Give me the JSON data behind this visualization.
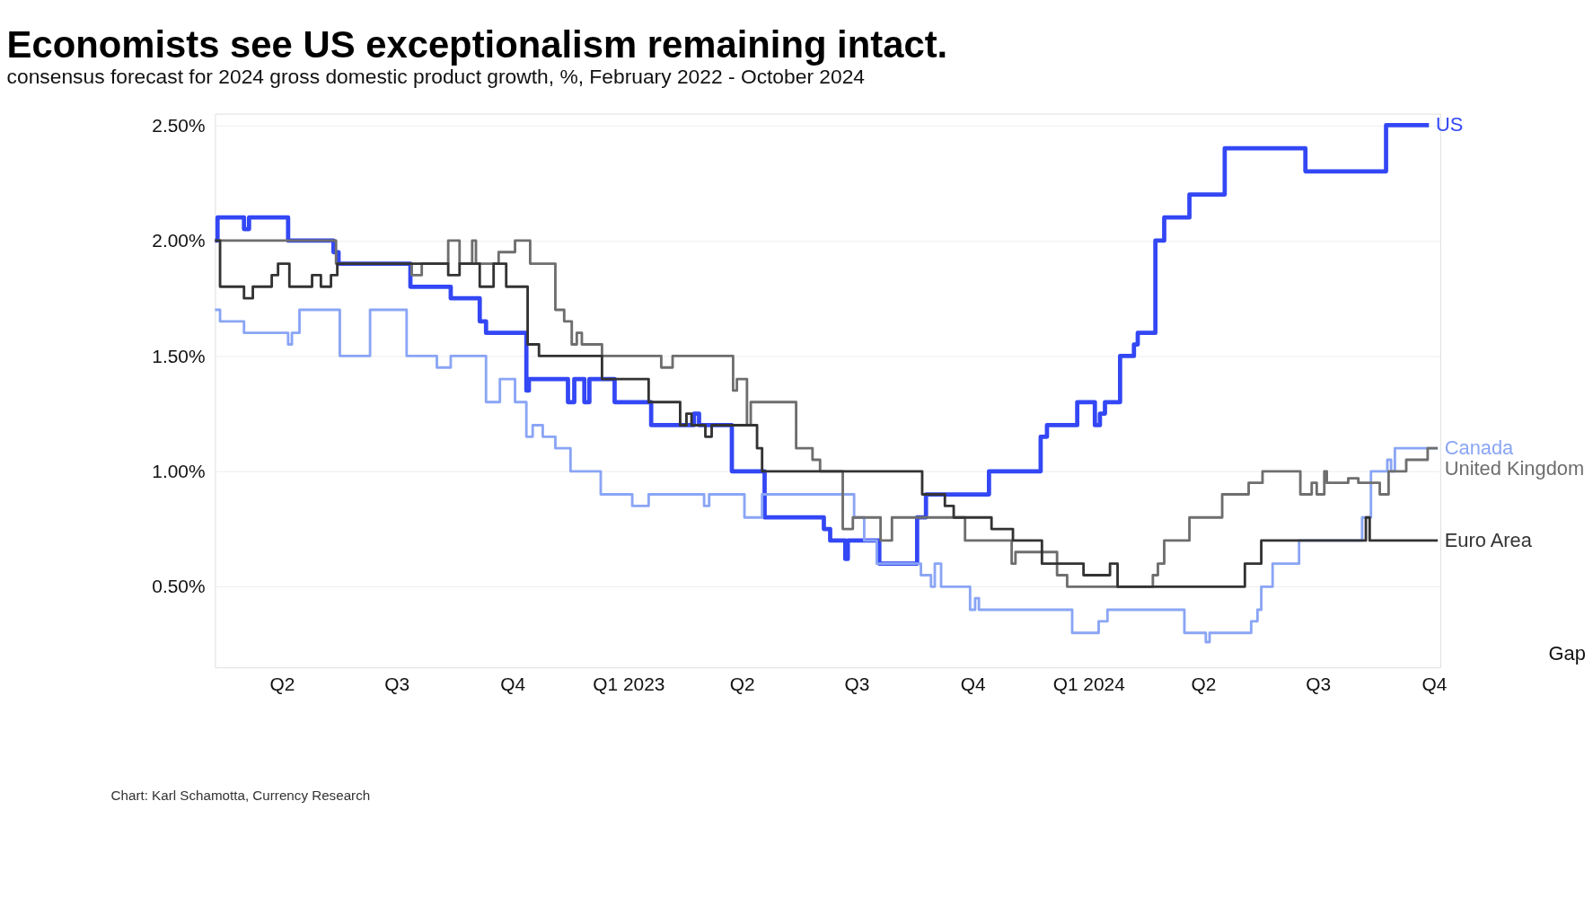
{
  "chart_data": {
    "type": "step",
    "title": "Economists see US exceptionalism remaining intact.",
    "subtitle": "consensus forecast for 2024 gross domestic product growth, %, February 2022 - October 2024",
    "xlim": [
      "2022-02-07",
      "2024-10-06"
    ],
    "xticks": [
      {
        "value": "2022-04-01",
        "label": "Q2"
      },
      {
        "value": "2022-07-01",
        "label": "Q3"
      },
      {
        "value": "2022-10-01",
        "label": "Q4"
      },
      {
        "value": "2023-01-01",
        "label": "Q1 2023"
      },
      {
        "value": "2023-04-01",
        "label": "Q2"
      },
      {
        "value": "2023-07-01",
        "label": "Q3"
      },
      {
        "value": "2023-10-01",
        "label": "Q4"
      },
      {
        "value": "2024-01-01",
        "label": "Q1 2024"
      },
      {
        "value": "2024-04-01",
        "label": "Q2"
      },
      {
        "value": "2024-07-01",
        "label": "Q3"
      },
      {
        "value": "2024-10-01",
        "label": "Q4"
      }
    ],
    "ylim": [
      0.15,
      2.55
    ],
    "yticks": [
      {
        "value": 0.5,
        "label": "0.50%"
      },
      {
        "value": 1.0,
        "label": "1.00%"
      },
      {
        "value": 1.5,
        "label": "1.50%"
      },
      {
        "value": 2.0,
        "label": "2.00%"
      },
      {
        "value": 2.5,
        "label": "2.50%"
      }
    ],
    "grid": "y",
    "line_style": "solid",
    "annotations": [
      "Gap",
      "Chart: Karl Schamotta, Currency Research"
    ],
    "series": [
      {
        "name": "US",
        "color": "#3347f5",
        "x": [
          "2022-02-07",
          "2022-02-09",
          "2022-03-02",
          "2022-03-06",
          "2022-04-06",
          "2022-05-12",
          "2022-05-16",
          "2022-07-12",
          "2022-08-13",
          "2022-09-05",
          "2022-09-10",
          "2022-10-12",
          "2022-10-14",
          "2022-11-14",
          "2022-11-19",
          "2022-11-27",
          "2022-12-01",
          "2022-12-21",
          "2023-01-19",
          "2023-02-22",
          "2023-02-26",
          "2023-03-24",
          "2023-04-19",
          "2023-06-05",
          "2023-06-10",
          "2023-06-22",
          "2023-06-24",
          "2023-07-19",
          "2023-08-18",
          "2023-08-25",
          "2023-10-14",
          "2023-11-24",
          "2023-11-29",
          "2023-12-23",
          "2024-01-06",
          "2024-01-10",
          "2024-01-14",
          "2024-01-26",
          "2024-02-06",
          "2024-02-09",
          "2024-02-23",
          "2024-03-01",
          "2024-03-21",
          "2024-04-18",
          "2024-06-21",
          "2024-08-24",
          "2024-09-27"
        ],
        "values": [
          2.0,
          2.1,
          2.05,
          2.1,
          2.0,
          1.95,
          1.9,
          1.8,
          1.75,
          1.65,
          1.6,
          1.35,
          1.4,
          1.3,
          1.4,
          1.3,
          1.4,
          1.3,
          1.2,
          1.25,
          1.2,
          1.0,
          0.8,
          0.75,
          0.7,
          0.62,
          0.7,
          0.6,
          0.8,
          0.9,
          1.0,
          1.15,
          1.2,
          1.3,
          1.2,
          1.25,
          1.3,
          1.5,
          1.55,
          1.6,
          2.0,
          2.1,
          2.2,
          2.4,
          2.3,
          2.5,
          2.5
        ]
      },
      {
        "name": "Canada",
        "color": "#8aa5f5",
        "x": [
          "2022-02-07",
          "2022-02-11",
          "2022-03-02",
          "2022-04-06",
          "2022-04-09",
          "2022-04-15",
          "2022-05-17",
          "2022-06-10",
          "2022-07-09",
          "2022-08-02",
          "2022-08-13",
          "2022-09-10",
          "2022-09-21",
          "2022-10-03",
          "2022-10-12",
          "2022-10-17",
          "2022-10-25",
          "2022-11-04",
          "2022-11-16",
          "2022-12-10",
          "2023-01-04",
          "2023-01-17",
          "2023-03-02",
          "2023-03-06",
          "2023-04-03",
          "2023-04-17",
          "2023-06-29",
          "2023-07-07",
          "2023-07-17",
          "2023-08-21",
          "2023-08-29",
          "2023-09-01",
          "2023-09-06",
          "2023-09-29",
          "2023-10-03",
          "2023-10-06",
          "2023-12-19",
          "2024-01-09",
          "2024-01-16",
          "2024-03-17",
          "2024-04-03",
          "2024-04-06",
          "2024-05-09",
          "2024-05-14",
          "2024-05-17",
          "2024-05-26",
          "2024-06-16",
          "2024-08-05",
          "2024-08-12",
          "2024-08-25",
          "2024-08-28",
          "2024-08-31",
          "2024-10-04"
        ],
        "values": [
          1.7,
          1.65,
          1.6,
          1.55,
          1.6,
          1.7,
          1.5,
          1.7,
          1.5,
          1.45,
          1.5,
          1.3,
          1.4,
          1.3,
          1.15,
          1.2,
          1.15,
          1.1,
          1.0,
          0.9,
          0.85,
          0.9,
          0.85,
          0.9,
          0.8,
          0.9,
          0.8,
          0.7,
          0.6,
          0.55,
          0.5,
          0.6,
          0.5,
          0.4,
          0.45,
          0.4,
          0.3,
          0.35,
          0.4,
          0.3,
          0.26,
          0.3,
          0.35,
          0.4,
          0.5,
          0.6,
          0.7,
          0.8,
          1.0,
          1.05,
          1.0,
          1.1,
          1.1
        ]
      },
      {
        "name": "United Kingdom",
        "color": "#6e6e6e",
        "x": [
          "2022-02-07",
          "2022-05-14",
          "2022-07-13",
          "2022-07-21",
          "2022-08-11",
          "2022-08-20",
          "2022-08-30",
          "2022-09-02",
          "2022-09-20",
          "2022-10-03",
          "2022-10-15",
          "2022-11-04",
          "2022-11-11",
          "2022-11-17",
          "2022-11-21",
          "2022-11-25",
          "2022-12-11",
          "2023-01-27",
          "2023-02-05",
          "2023-03-25",
          "2023-03-28",
          "2023-04-05",
          "2023-04-08",
          "2023-05-14",
          "2023-05-27",
          "2023-06-02",
          "2023-06-20",
          "2023-06-28",
          "2023-07-20",
          "2023-07-29",
          "2023-09-25",
          "2023-11-01",
          "2023-11-04",
          "2023-12-07",
          "2023-12-15",
          "2024-02-21",
          "2024-02-25",
          "2024-03-01",
          "2024-03-21",
          "2024-04-16",
          "2024-05-07",
          "2024-05-18",
          "2024-06-17",
          "2024-06-26",
          "2024-06-30",
          "2024-07-06",
          "2024-07-08",
          "2024-07-25",
          "2024-08-02",
          "2024-08-19",
          "2024-08-26",
          "2024-09-09",
          "2024-09-26",
          "2024-10-04"
        ],
        "values": [
          2.0,
          1.9,
          1.85,
          1.9,
          2.0,
          1.9,
          2.0,
          1.9,
          1.95,
          2.0,
          1.9,
          1.7,
          1.65,
          1.55,
          1.6,
          1.55,
          1.5,
          1.45,
          1.5,
          1.35,
          1.4,
          1.2,
          1.3,
          1.1,
          1.05,
          1.0,
          0.75,
          0.8,
          0.7,
          0.8,
          0.7,
          0.6,
          0.65,
          0.55,
          0.5,
          0.55,
          0.6,
          0.7,
          0.8,
          0.9,
          0.95,
          1.0,
          0.9,
          0.95,
          0.9,
          1.0,
          0.95,
          0.97,
          0.95,
          0.9,
          1.0,
          1.05,
          1.1,
          1.1
        ]
      },
      {
        "name": "Euro Area",
        "color": "#333333",
        "x": [
          "2022-02-07",
          "2022-02-11",
          "2022-03-02",
          "2022-03-09",
          "2022-03-24",
          "2022-03-29",
          "2022-04-07",
          "2022-04-25",
          "2022-05-02",
          "2022-05-10",
          "2022-05-15",
          "2022-08-11",
          "2022-08-20",
          "2022-09-05",
          "2022-09-16",
          "2022-09-26",
          "2022-10-13",
          "2022-10-22",
          "2022-12-11",
          "2023-01-17",
          "2023-02-11",
          "2023-02-16",
          "2023-02-20",
          "2023-03-03",
          "2023-03-08",
          "2023-04-13",
          "2023-04-17",
          "2023-08-22",
          "2023-09-09",
          "2023-09-16",
          "2023-10-16",
          "2023-11-02",
          "2023-11-25",
          "2023-12-28",
          "2024-01-18",
          "2024-01-24",
          "2024-05-04",
          "2024-05-17",
          "2024-08-08",
          "2024-08-11",
          "2024-10-04"
        ],
        "values": [
          2.0,
          1.8,
          1.75,
          1.8,
          1.85,
          1.9,
          1.8,
          1.85,
          1.8,
          1.85,
          1.9,
          1.85,
          1.9,
          1.8,
          1.9,
          1.8,
          1.55,
          1.5,
          1.4,
          1.3,
          1.2,
          1.25,
          1.2,
          1.15,
          1.2,
          1.1,
          1.0,
          0.9,
          0.85,
          0.8,
          0.75,
          0.7,
          0.6,
          0.55,
          0.6,
          0.5,
          0.6,
          0.7,
          0.8,
          0.7,
          0.7
        ]
      }
    ]
  }
}
